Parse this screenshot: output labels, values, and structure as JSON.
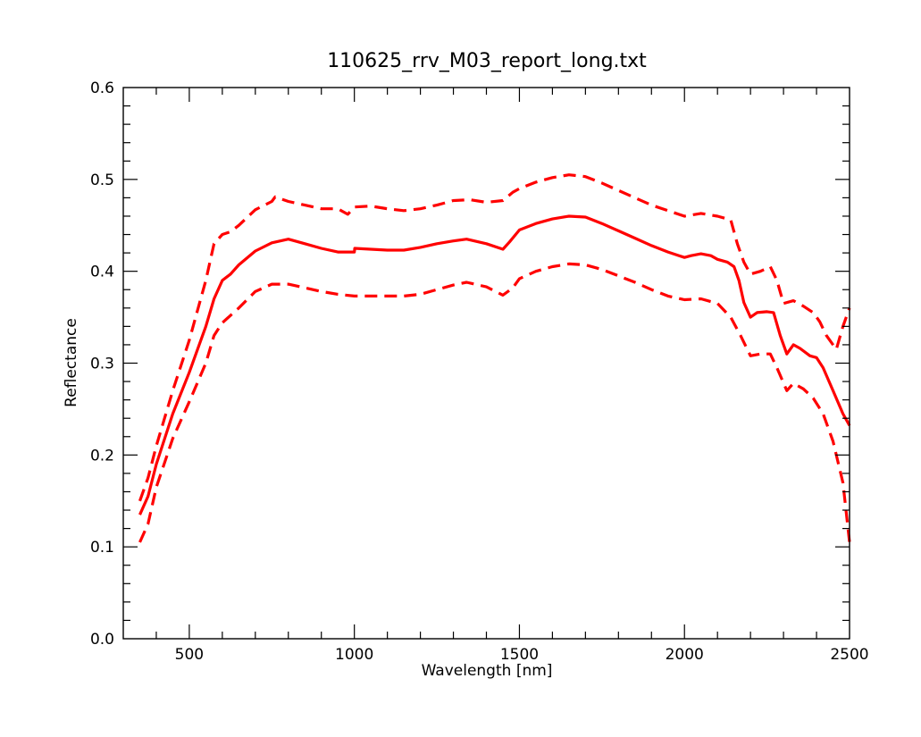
{
  "chart_data": {
    "type": "line",
    "title": "110625_rrv_M03_report_long.txt",
    "xlabel": "Wavelength [nm]",
    "ylabel": "Reflectance",
    "xlim": [
      300,
      2500
    ],
    "ylim": [
      0.0,
      0.6
    ],
    "x_ticks": [
      500,
      1000,
      1500,
      2000,
      2500
    ],
    "y_ticks": [
      0.0,
      0.1,
      0.2,
      0.3,
      0.4,
      0.5,
      0.6
    ],
    "x_tick_labels": [
      "500",
      "1000",
      "1500",
      "2000",
      "2500"
    ],
    "y_tick_labels": [
      "0.0",
      "0.1",
      "0.2",
      "0.3",
      "0.4",
      "0.5",
      "0.6"
    ],
    "grid": false,
    "legend": "none",
    "series": [
      {
        "style": "solid",
        "color": "#ff0000",
        "points": [
          [
            350,
            0.135
          ],
          [
            375,
            0.155
          ],
          [
            400,
            0.19
          ],
          [
            450,
            0.245
          ],
          [
            500,
            0.29
          ],
          [
            550,
            0.34
          ],
          [
            575,
            0.37
          ],
          [
            600,
            0.39
          ],
          [
            625,
            0.397
          ],
          [
            650,
            0.407
          ],
          [
            700,
            0.422
          ],
          [
            750,
            0.431
          ],
          [
            800,
            0.435
          ],
          [
            850,
            0.43
          ],
          [
            900,
            0.425
          ],
          [
            950,
            0.421
          ],
          [
            1000,
            0.421
          ],
          [
            1001,
            0.425
          ],
          [
            1050,
            0.424
          ],
          [
            1100,
            0.423
          ],
          [
            1150,
            0.423
          ],
          [
            1200,
            0.426
          ],
          [
            1250,
            0.43
          ],
          [
            1300,
            0.433
          ],
          [
            1340,
            0.435
          ],
          [
            1400,
            0.43
          ],
          [
            1450,
            0.424
          ],
          [
            1470,
            0.432
          ],
          [
            1500,
            0.445
          ],
          [
            1550,
            0.452
          ],
          [
            1600,
            0.457
          ],
          [
            1650,
            0.46
          ],
          [
            1700,
            0.459
          ],
          [
            1750,
            0.452
          ],
          [
            1800,
            0.444
          ],
          [
            1850,
            0.436
          ],
          [
            1900,
            0.428
          ],
          [
            1950,
            0.421
          ],
          [
            2000,
            0.415
          ],
          [
            2020,
            0.417
          ],
          [
            2050,
            0.419
          ],
          [
            2080,
            0.417
          ],
          [
            2100,
            0.413
          ],
          [
            2130,
            0.41
          ],
          [
            2150,
            0.405
          ],
          [
            2165,
            0.39
          ],
          [
            2180,
            0.366
          ],
          [
            2200,
            0.35
          ],
          [
            2220,
            0.355
          ],
          [
            2250,
            0.356
          ],
          [
            2270,
            0.355
          ],
          [
            2290,
            0.33
          ],
          [
            2310,
            0.31
          ],
          [
            2330,
            0.32
          ],
          [
            2350,
            0.316
          ],
          [
            2380,
            0.308
          ],
          [
            2400,
            0.306
          ],
          [
            2420,
            0.295
          ],
          [
            2450,
            0.27
          ],
          [
            2480,
            0.245
          ],
          [
            2500,
            0.232
          ]
        ]
      },
      {
        "style": "dashed",
        "color": "#ff0000",
        "points": [
          [
            350,
            0.15
          ],
          [
            375,
            0.175
          ],
          [
            400,
            0.21
          ],
          [
            450,
            0.27
          ],
          [
            500,
            0.325
          ],
          [
            550,
            0.39
          ],
          [
            575,
            0.43
          ],
          [
            600,
            0.44
          ],
          [
            625,
            0.443
          ],
          [
            650,
            0.45
          ],
          [
            700,
            0.467
          ],
          [
            750,
            0.476
          ],
          [
            760,
            0.481
          ],
          [
            800,
            0.476
          ],
          [
            850,
            0.472
          ],
          [
            900,
            0.468
          ],
          [
            950,
            0.468
          ],
          [
            980,
            0.462
          ],
          [
            1000,
            0.47
          ],
          [
            1050,
            0.471
          ],
          [
            1100,
            0.468
          ],
          [
            1150,
            0.466
          ],
          [
            1200,
            0.468
          ],
          [
            1250,
            0.472
          ],
          [
            1300,
            0.477
          ],
          [
            1350,
            0.478
          ],
          [
            1400,
            0.475
          ],
          [
            1450,
            0.477
          ],
          [
            1480,
            0.486
          ],
          [
            1500,
            0.49
          ],
          [
            1550,
            0.497
          ],
          [
            1600,
            0.502
          ],
          [
            1650,
            0.505
          ],
          [
            1700,
            0.503
          ],
          [
            1750,
            0.496
          ],
          [
            1800,
            0.488
          ],
          [
            1850,
            0.48
          ],
          [
            1900,
            0.472
          ],
          [
            1950,
            0.466
          ],
          [
            2000,
            0.46
          ],
          [
            2050,
            0.463
          ],
          [
            2100,
            0.46
          ],
          [
            2140,
            0.456
          ],
          [
            2160,
            0.43
          ],
          [
            2180,
            0.41
          ],
          [
            2200,
            0.397
          ],
          [
            2230,
            0.4
          ],
          [
            2260,
            0.405
          ],
          [
            2280,
            0.39
          ],
          [
            2300,
            0.365
          ],
          [
            2330,
            0.368
          ],
          [
            2360,
            0.362
          ],
          [
            2390,
            0.355
          ],
          [
            2410,
            0.345
          ],
          [
            2430,
            0.33
          ],
          [
            2460,
            0.315
          ],
          [
            2480,
            0.34
          ],
          [
            2500,
            0.36
          ]
        ]
      },
      {
        "style": "dashed",
        "color": "#ff0000",
        "points": [
          [
            350,
            0.105
          ],
          [
            375,
            0.125
          ],
          [
            400,
            0.165
          ],
          [
            450,
            0.218
          ],
          [
            500,
            0.258
          ],
          [
            550,
            0.3
          ],
          [
            575,
            0.33
          ],
          [
            600,
            0.344
          ],
          [
            650,
            0.36
          ],
          [
            700,
            0.378
          ],
          [
            750,
            0.386
          ],
          [
            800,
            0.386
          ],
          [
            850,
            0.382
          ],
          [
            900,
            0.378
          ],
          [
            950,
            0.375
          ],
          [
            1000,
            0.373
          ],
          [
            1050,
            0.373
          ],
          [
            1100,
            0.373
          ],
          [
            1150,
            0.373
          ],
          [
            1200,
            0.375
          ],
          [
            1250,
            0.38
          ],
          [
            1300,
            0.385
          ],
          [
            1340,
            0.388
          ],
          [
            1400,
            0.383
          ],
          [
            1450,
            0.374
          ],
          [
            1480,
            0.382
          ],
          [
            1500,
            0.392
          ],
          [
            1550,
            0.4
          ],
          [
            1600,
            0.405
          ],
          [
            1650,
            0.408
          ],
          [
            1700,
            0.407
          ],
          [
            1750,
            0.402
          ],
          [
            1800,
            0.395
          ],
          [
            1850,
            0.388
          ],
          [
            1900,
            0.38
          ],
          [
            1950,
            0.373
          ],
          [
            2000,
            0.369
          ],
          [
            2050,
            0.37
          ],
          [
            2100,
            0.365
          ],
          [
            2140,
            0.35
          ],
          [
            2170,
            0.33
          ],
          [
            2200,
            0.308
          ],
          [
            2230,
            0.31
          ],
          [
            2260,
            0.31
          ],
          [
            2280,
            0.295
          ],
          [
            2310,
            0.27
          ],
          [
            2330,
            0.278
          ],
          [
            2360,
            0.272
          ],
          [
            2390,
            0.262
          ],
          [
            2420,
            0.245
          ],
          [
            2450,
            0.215
          ],
          [
            2480,
            0.17
          ],
          [
            2500,
            0.105
          ]
        ]
      }
    ]
  }
}
